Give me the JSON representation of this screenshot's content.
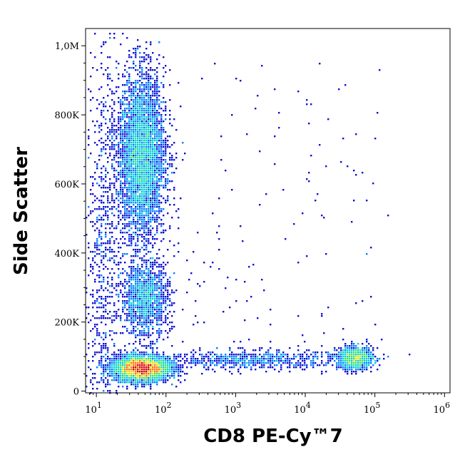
{
  "chart_data": {
    "type": "scatter",
    "title": "",
    "xlabel": "CD8 PE-Cy™​7",
    "ylabel": "Side Scatter",
    "x_scale": "log",
    "xlim": [
      7,
      1200000
    ],
    "ylim": [
      -5000,
      1050000
    ],
    "x_ticks": [
      {
        "value": 10,
        "base": "10",
        "exp": "1"
      },
      {
        "value": 100,
        "base": "10",
        "exp": "2"
      },
      {
        "value": 1000,
        "base": "10",
        "exp": "3"
      },
      {
        "value": 10000,
        "base": "10",
        "exp": "4"
      },
      {
        "value": 100000,
        "base": "10",
        "exp": "5"
      },
      {
        "value": 1000000,
        "base": "10",
        "exp": "6"
      }
    ],
    "y_ticks": [
      {
        "value": 0,
        "label": "0"
      },
      {
        "value": 200000,
        "label": "200K"
      },
      {
        "value": 400000,
        "label": "400K"
      },
      {
        "value": 600000,
        "label": "600K"
      },
      {
        "value": 800000,
        "label": "800K"
      },
      {
        "value": 1000000,
        "label": "1,0M"
      }
    ],
    "density_colormap": [
      "#1010d0",
      "#0080ff",
      "#00d0d0",
      "#40e060",
      "#e0e020",
      "#ff7000",
      "#d00000"
    ],
    "populations": [
      {
        "x_log_center": 1.65,
        "x_log_spread": 0.2,
        "y_center": 65000,
        "y_spread": 18000,
        "weight": 4200
      },
      {
        "x_log_center": 1.65,
        "x_log_spread": 0.17,
        "y_center": 680000,
        "y_spread": 120000,
        "weight": 4200
      },
      {
        "x_log_center": 1.7,
        "x_log_spread": 0.17,
        "y_center": 265000,
        "y_spread": 55000,
        "weight": 1300
      },
      {
        "x_log_center": 4.72,
        "x_log_spread": 0.13,
        "y_center": 95000,
        "y_spread": 16000,
        "weight": 1000
      },
      {
        "x_log_center": 3.2,
        "x_log_spread": 0.7,
        "y_center": 90000,
        "y_spread": 14000,
        "weight": 700
      },
      {
        "x_log_center": 1.1,
        "x_log_spread": 0.12,
        "y_center": 400000,
        "y_spread": 300000,
        "weight": 700
      }
    ]
  }
}
